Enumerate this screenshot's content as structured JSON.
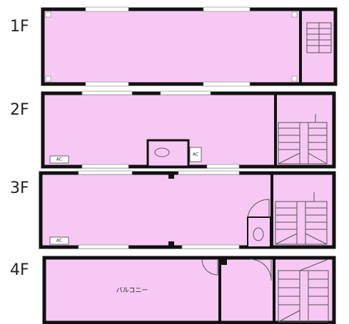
{
  "floors": [
    {
      "label": "1F"
    },
    {
      "label": "2F",
      "ac": [
        "AC",
        "AC"
      ]
    },
    {
      "label": "3F",
      "ac": [
        "AC"
      ]
    },
    {
      "label": "4F",
      "balcony": "バルコニー"
    }
  ]
}
